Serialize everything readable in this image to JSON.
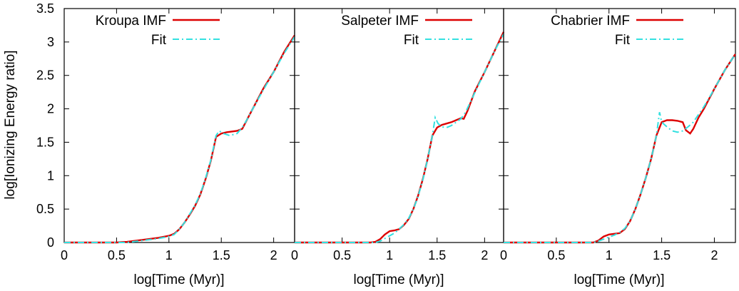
{
  "chart_data": {
    "type": "line",
    "ylabel": "log[Ionizing Energy ratio]",
    "xlabel": "log[Time (Myr)]",
    "xlim": [
      0,
      2.2
    ],
    "ylim": [
      0,
      3.5
    ],
    "x_ticks": [
      "0",
      "0.5",
      "1",
      "1.5",
      "2"
    ],
    "y_ticks": [
      "0",
      "0.5",
      "1",
      "1.5",
      "2",
      "2.5",
      "3",
      "3.5"
    ],
    "colors": {
      "model": "#dd0000",
      "fit": "#33e0e0"
    },
    "panels": [
      {
        "name": "kroupa",
        "series": [
          {
            "name": "Kroupa IMF",
            "style": "solid",
            "points": [
              [
                0,
                0
              ],
              [
                0.5,
                0
              ],
              [
                0.55,
                0.005
              ],
              [
                0.6,
                0.01
              ],
              [
                0.7,
                0.03
              ],
              [
                0.8,
                0.05
              ],
              [
                0.9,
                0.07
              ],
              [
                1.0,
                0.1
              ],
              [
                1.05,
                0.13
              ],
              [
                1.1,
                0.2
              ],
              [
                1.15,
                0.3
              ],
              [
                1.2,
                0.42
              ],
              [
                1.25,
                0.55
              ],
              [
                1.3,
                0.72
              ],
              [
                1.35,
                0.95
              ],
              [
                1.4,
                1.22
              ],
              [
                1.45,
                1.58
              ],
              [
                1.5,
                1.63
              ],
              [
                1.55,
                1.65
              ],
              [
                1.6,
                1.66
              ],
              [
                1.65,
                1.67
              ],
              [
                1.7,
                1.7
              ],
              [
                1.75,
                1.85
              ],
              [
                1.8,
                2.0
              ],
              [
                1.9,
                2.3
              ],
              [
                2.0,
                2.55
              ],
              [
                2.1,
                2.85
              ],
              [
                2.2,
                3.1
              ]
            ]
          },
          {
            "name": "Fit",
            "style": "dashdot",
            "points": [
              [
                0,
                0
              ],
              [
                0.6,
                0
              ],
              [
                0.7,
                0.02
              ],
              [
                0.8,
                0.04
              ],
              [
                0.9,
                0.06
              ],
              [
                1.0,
                0.09
              ],
              [
                1.05,
                0.12
              ],
              [
                1.1,
                0.2
              ],
              [
                1.15,
                0.3
              ],
              [
                1.2,
                0.43
              ],
              [
                1.25,
                0.56
              ],
              [
                1.3,
                0.73
              ],
              [
                1.35,
                0.96
              ],
              [
                1.4,
                1.23
              ],
              [
                1.45,
                1.6
              ],
              [
                1.48,
                1.67
              ],
              [
                1.52,
                1.63
              ],
              [
                1.58,
                1.6
              ],
              [
                1.65,
                1.63
              ],
              [
                1.7,
                1.72
              ],
              [
                1.75,
                1.85
              ],
              [
                1.8,
                2.0
              ],
              [
                1.9,
                2.28
              ],
              [
                2.0,
                2.55
              ],
              [
                2.1,
                2.83
              ],
              [
                2.2,
                3.08
              ]
            ]
          }
        ]
      },
      {
        "name": "salpeter",
        "series": [
          {
            "name": "Salpeter IMF",
            "style": "solid",
            "points": [
              [
                0,
                0
              ],
              [
                0.8,
                0
              ],
              [
                0.85,
                0.01
              ],
              [
                0.9,
                0.05
              ],
              [
                0.95,
                0.12
              ],
              [
                1.0,
                0.17
              ],
              [
                1.05,
                0.18
              ],
              [
                1.1,
                0.2
              ],
              [
                1.15,
                0.26
              ],
              [
                1.2,
                0.35
              ],
              [
                1.25,
                0.5
              ],
              [
                1.3,
                0.7
              ],
              [
                1.35,
                0.95
              ],
              [
                1.4,
                1.25
              ],
              [
                1.45,
                1.6
              ],
              [
                1.5,
                1.72
              ],
              [
                1.55,
                1.76
              ],
              [
                1.6,
                1.78
              ],
              [
                1.65,
                1.8
              ],
              [
                1.7,
                1.83
              ],
              [
                1.75,
                1.86
              ],
              [
                1.78,
                1.85
              ],
              [
                1.82,
                1.97
              ],
              [
                1.9,
                2.27
              ],
              [
                2.0,
                2.55
              ],
              [
                2.1,
                2.85
              ],
              [
                2.2,
                3.15
              ]
            ]
          },
          {
            "name": "Fit",
            "style": "dashdot",
            "points": [
              [
                0,
                0
              ],
              [
                0.85,
                0
              ],
              [
                0.9,
                0.02
              ],
              [
                0.95,
                0.06
              ],
              [
                1.0,
                0.1
              ],
              [
                1.05,
                0.14
              ],
              [
                1.1,
                0.2
              ],
              [
                1.15,
                0.27
              ],
              [
                1.2,
                0.36
              ],
              [
                1.25,
                0.5
              ],
              [
                1.3,
                0.69
              ],
              [
                1.35,
                0.94
              ],
              [
                1.4,
                1.25
              ],
              [
                1.45,
                1.6
              ],
              [
                1.48,
                1.87
              ],
              [
                1.51,
                1.78
              ],
              [
                1.55,
                1.73
              ],
              [
                1.6,
                1.72
              ],
              [
                1.65,
                1.75
              ],
              [
                1.7,
                1.8
              ],
              [
                1.75,
                1.85
              ],
              [
                1.8,
                1.95
              ],
              [
                1.9,
                2.25
              ],
              [
                2.0,
                2.55
              ],
              [
                2.1,
                2.85
              ],
              [
                2.2,
                3.12
              ]
            ]
          }
        ]
      },
      {
        "name": "chabrier",
        "series": [
          {
            "name": "Chabrier IMF",
            "style": "solid",
            "points": [
              [
                0,
                0
              ],
              [
                0.85,
                0
              ],
              [
                0.9,
                0.03
              ],
              [
                0.95,
                0.09
              ],
              [
                1.0,
                0.12
              ],
              [
                1.05,
                0.13
              ],
              [
                1.1,
                0.14
              ],
              [
                1.15,
                0.2
              ],
              [
                1.2,
                0.32
              ],
              [
                1.25,
                0.5
              ],
              [
                1.3,
                0.72
              ],
              [
                1.35,
                0.97
              ],
              [
                1.4,
                1.25
              ],
              [
                1.45,
                1.6
              ],
              [
                1.5,
                1.8
              ],
              [
                1.55,
                1.83
              ],
              [
                1.6,
                1.83
              ],
              [
                1.65,
                1.82
              ],
              [
                1.7,
                1.8
              ],
              [
                1.73,
                1.68
              ],
              [
                1.77,
                1.63
              ],
              [
                1.8,
                1.7
              ],
              [
                1.85,
                1.87
              ],
              [
                1.9,
                2.0
              ],
              [
                2.0,
                2.3
              ],
              [
                2.1,
                2.58
              ],
              [
                2.2,
                2.82
              ]
            ]
          },
          {
            "name": "Fit",
            "style": "dashdot",
            "points": [
              [
                0,
                0
              ],
              [
                0.85,
                0
              ],
              [
                0.9,
                0.02
              ],
              [
                0.95,
                0.05
              ],
              [
                1.0,
                0.08
              ],
              [
                1.05,
                0.11
              ],
              [
                1.1,
                0.15
              ],
              [
                1.15,
                0.21
              ],
              [
                1.2,
                0.32
              ],
              [
                1.25,
                0.5
              ],
              [
                1.3,
                0.72
              ],
              [
                1.35,
                0.97
              ],
              [
                1.4,
                1.25
              ],
              [
                1.45,
                1.6
              ],
              [
                1.48,
                1.95
              ],
              [
                1.5,
                1.8
              ],
              [
                1.55,
                1.73
              ],
              [
                1.6,
                1.67
              ],
              [
                1.65,
                1.65
              ],
              [
                1.7,
                1.67
              ],
              [
                1.75,
                1.73
              ],
              [
                1.8,
                1.8
              ],
              [
                1.9,
                2.03
              ],
              [
                2.0,
                2.3
              ],
              [
                2.1,
                2.58
              ],
              [
                2.2,
                2.82
              ]
            ]
          }
        ]
      }
    ]
  }
}
